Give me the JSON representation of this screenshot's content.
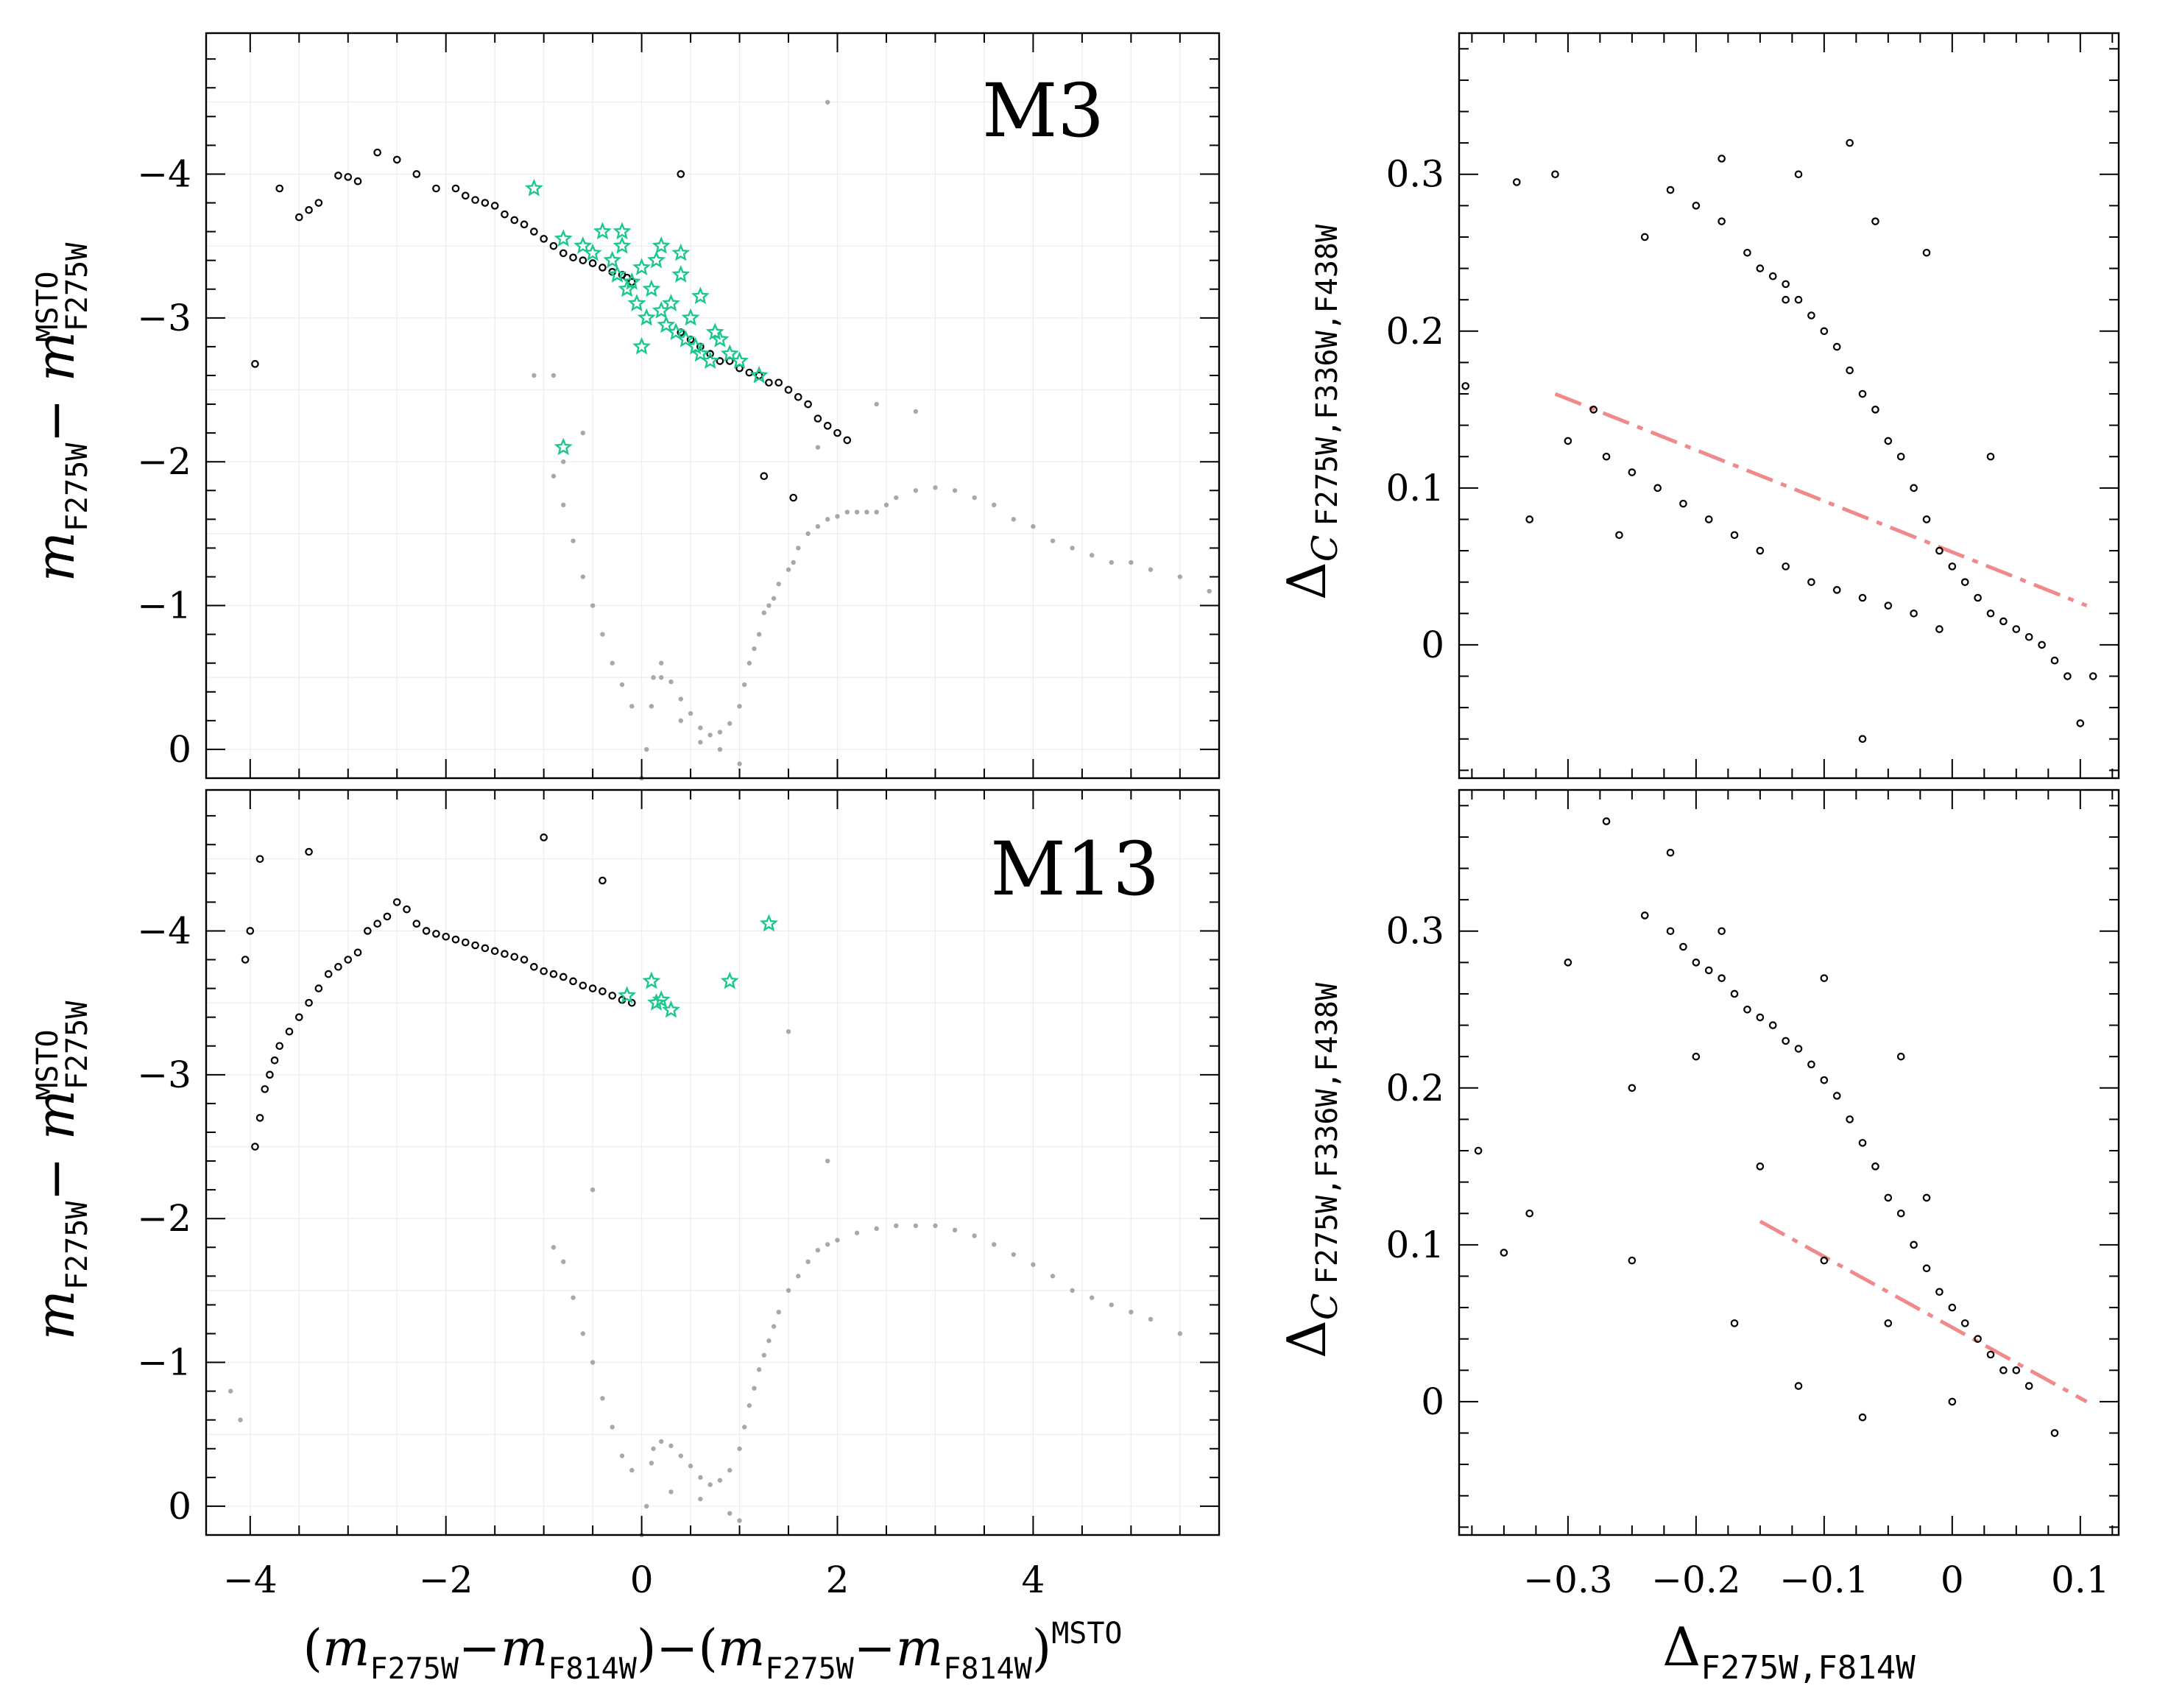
{
  "figure": {
    "colors": {
      "background_stars": "#a8a8a8",
      "sample_stars": "#000000",
      "variable_stars": "#19c98a",
      "separator_line": "#f08a8a"
    },
    "left_xlabel": {
      "text": "(m F275W−m F814W)−(m F275W−m F814W)MSTO",
      "p1": "(",
      "m1": "m",
      "s1": "F275W",
      "dash1": "−",
      "m2": "m",
      "s2": "F814W",
      "mid": ")−(",
      "m3": "m",
      "s3": "F275W",
      "dash2": "−",
      "m4": "m",
      "s4": "F814W",
      "close": ")",
      "sup": "MSTO"
    },
    "left_ylabel": {
      "text": "m F275W− m F275W MSTO",
      "m1": "m",
      "s1": "F275W",
      "dash": "− ",
      "m2": "m",
      "sub": "F275W",
      "sup": "MSTO"
    },
    "right_xlabel": {
      "text": "ΔF275W,F814W",
      "delta": "Δ",
      "sub": "F275W,F814W"
    },
    "right_ylabel": {
      "text": "ΔC F275W,F336W,F438W",
      "delta": "Δ",
      "c": "C",
      "sub": "F275W,F336W,F438W"
    }
  },
  "chart_data": [
    {
      "id": "m3-cmd",
      "type": "scatter",
      "title": "M3",
      "xlim": [
        -4.45,
        5.9
      ],
      "ylim": [
        0.2,
        -4.98
      ],
      "yreversed": true,
      "xticks": [
        -4,
        -2,
        0,
        2,
        4
      ],
      "yticks": [
        -4,
        -3,
        -2,
        -1,
        0
      ],
      "show_xticklabels": false,
      "grid": true,
      "series": [
        {
          "name": "background",
          "marker": "dot",
          "x": [
            0,
            0.05,
            0.1,
            0.12,
            0.2,
            0.3,
            0.4,
            0.5,
            0.6,
            0.7,
            0.8,
            0.9,
            1.0,
            1.05,
            1.1,
            1.15,
            1.2,
            1.25,
            1.3,
            1.35,
            1.4,
            1.5,
            1.55,
            1.6,
            1.7,
            1.8,
            1.9,
            2.0,
            2.1,
            2.2,
            2.3,
            2.4,
            2.5,
            2.6,
            2.8,
            3.0,
            3.2,
            3.4,
            3.6,
            3.8,
            4.0,
            4.2,
            4.4,
            4.6,
            4.8,
            5.0,
            5.2,
            5.5,
            5.8,
            -0.3,
            -0.4,
            -0.5,
            -0.6,
            -0.7,
            -0.8,
            -0.2,
            -0.1,
            0.2,
            0.4,
            0.6,
            0.8,
            1.0,
            -0.9,
            -0.8,
            -0.6,
            2.4,
            2.8,
            1.8,
            -0.9,
            -1.1,
            1.9
          ],
          "y": [
            0.2,
            0.0,
            -0.3,
            -0.5,
            -0.5,
            -0.47,
            -0.35,
            -0.25,
            -0.15,
            -0.1,
            -0.12,
            -0.18,
            -0.3,
            -0.45,
            -0.6,
            -0.7,
            -0.8,
            -0.95,
            -1.0,
            -1.05,
            -1.15,
            -1.25,
            -1.3,
            -1.4,
            -1.5,
            -1.55,
            -1.6,
            -1.62,
            -1.65,
            -1.65,
            -1.65,
            -1.65,
            -1.7,
            -1.75,
            -1.8,
            -1.82,
            -1.8,
            -1.75,
            -1.7,
            -1.6,
            -1.55,
            -1.45,
            -1.4,
            -1.35,
            -1.3,
            -1.3,
            -1.25,
            -1.2,
            -1.1,
            -0.6,
            -0.8,
            -1.0,
            -1.2,
            -1.45,
            -1.7,
            -0.45,
            -0.3,
            -0.6,
            -0.2,
            -0.05,
            0.0,
            0.1,
            -1.9,
            -2.0,
            -2.2,
            -2.4,
            -2.35,
            -2.1,
            -2.6,
            -2.6,
            -4.5
          ]
        },
        {
          "name": "sample",
          "marker": "circle",
          "x": [
            -3.95,
            -3.7,
            -3.5,
            -3.4,
            -3.3,
            -3.1,
            -3.0,
            -2.9,
            -2.7,
            -2.5,
            -2.3,
            -2.1,
            -1.9,
            -1.8,
            -1.7,
            -1.6,
            -1.5,
            -1.4,
            -1.3,
            -1.2,
            -1.1,
            -1.0,
            -0.9,
            -0.8,
            -0.7,
            -0.6,
            -0.5,
            -0.4,
            -0.3,
            -0.2,
            -0.15,
            -0.1,
            0.4,
            0.5,
            0.6,
            0.7,
            0.8,
            0.9,
            1.0,
            1.1,
            1.2,
            1.3,
            1.4,
            1.5,
            1.6,
            1.7,
            1.8,
            1.9,
            2.0,
            2.1,
            0.4,
            1.25,
            1.55
          ],
          "y": [
            -2.68,
            -3.9,
            -3.7,
            -3.75,
            -3.8,
            -3.99,
            -3.98,
            -3.95,
            -4.15,
            -4.1,
            -4.0,
            -3.9,
            -3.9,
            -3.85,
            -3.82,
            -3.8,
            -3.78,
            -3.72,
            -3.68,
            -3.65,
            -3.6,
            -3.55,
            -3.5,
            -3.45,
            -3.42,
            -3.4,
            -3.38,
            -3.35,
            -3.32,
            -3.3,
            -3.28,
            -3.25,
            -2.9,
            -2.85,
            -2.8,
            -2.75,
            -2.7,
            -2.7,
            -2.65,
            -2.62,
            -2.6,
            -2.55,
            -2.55,
            -2.5,
            -2.45,
            -2.4,
            -2.3,
            -2.25,
            -2.2,
            -2.15,
            -4.0,
            -1.9,
            -1.75
          ]
        },
        {
          "name": "variables",
          "marker": "star",
          "x": [
            -1.1,
            -0.8,
            -0.6,
            -0.5,
            -0.4,
            -0.3,
            -0.25,
            -0.2,
            -0.15,
            -0.1,
            -0.05,
            0,
            0.05,
            0.1,
            0.15,
            0.2,
            0.25,
            0.3,
            0.35,
            0.4,
            0.45,
            0.5,
            0.55,
            0.6,
            0.7,
            0.75,
            0.8,
            0.9,
            1.0,
            1.2,
            -0.8,
            -0.2,
            0.0,
            0.2,
            0.4,
            0.6
          ],
          "y": [
            -3.9,
            -3.55,
            -3.5,
            -3.45,
            -3.6,
            -3.4,
            -3.3,
            -3.5,
            -3.2,
            -3.25,
            -3.1,
            -3.35,
            -3.0,
            -3.2,
            -3.4,
            -3.05,
            -2.95,
            -3.1,
            -2.9,
            -3.3,
            -2.85,
            -3.0,
            -2.8,
            -3.15,
            -2.7,
            -2.9,
            -2.85,
            -2.75,
            -2.7,
            -2.6,
            -2.1,
            -3.6,
            -2.8,
            -3.5,
            -3.45,
            -2.75
          ]
        }
      ]
    },
    {
      "id": "m3-chromosome",
      "type": "scatter",
      "xlim": [
        -0.385,
        0.13
      ],
      "ylim": [
        -0.085,
        0.39
      ],
      "xticks": [
        -0.3,
        -0.2,
        -0.1,
        0,
        0.1
      ],
      "yticks": [
        0,
        0.1,
        0.2,
        0.3
      ],
      "show_xticklabels": false,
      "grid": false,
      "line": {
        "x": [
          -0.31,
          0.105
        ],
        "y": [
          0.16,
          0.025
        ]
      },
      "series": [
        {
          "name": "stars",
          "marker": "circle",
          "x": [
            -0.22,
            -0.2,
            -0.18,
            -0.16,
            -0.15,
            -0.14,
            -0.13,
            -0.12,
            -0.11,
            -0.1,
            -0.09,
            -0.08,
            -0.07,
            -0.06,
            -0.05,
            -0.04,
            -0.03,
            -0.02,
            -0.01,
            0,
            0.01,
            0.02,
            0.03,
            0.04,
            0.05,
            0.06,
            0.07,
            0.08,
            0.09,
            0.1,
            -0.3,
            -0.27,
            -0.25,
            -0.23,
            -0.21,
            -0.19,
            -0.17,
            -0.15,
            -0.13,
            -0.11,
            -0.09,
            -0.07,
            -0.05,
            -0.03,
            -0.01,
            -0.24,
            -0.18,
            -0.13,
            -0.08,
            -0.34,
            -0.31,
            -0.28,
            -0.26,
            -0.12,
            -0.06,
            -0.02,
            0.03,
            0.11,
            -0.38,
            -0.33,
            -0.07
          ],
          "y": [
            0.29,
            0.28,
            0.27,
            0.25,
            0.24,
            0.235,
            0.23,
            0.22,
            0.21,
            0.2,
            0.19,
            0.175,
            0.16,
            0.15,
            0.13,
            0.12,
            0.1,
            0.08,
            0.06,
            0.05,
            0.04,
            0.03,
            0.02,
            0.015,
            0.01,
            0.005,
            0.0,
            -0.01,
            -0.02,
            -0.05,
            0.13,
            0.12,
            0.11,
            0.1,
            0.09,
            0.08,
            0.07,
            0.06,
            0.05,
            0.04,
            0.035,
            0.03,
            0.025,
            0.02,
            0.01,
            0.26,
            0.31,
            0.22,
            0.32,
            0.295,
            0.3,
            0.15,
            0.07,
            0.3,
            0.27,
            0.25,
            0.12,
            -0.02,
            0.165,
            0.08,
            -0.06
          ]
        }
      ]
    },
    {
      "id": "m13-cmd",
      "type": "scatter",
      "title": "M13",
      "xlim": [
        -4.45,
        5.9
      ],
      "ylim": [
        0.2,
        -4.98
      ],
      "yreversed": true,
      "xticks": [
        -4,
        -2,
        0,
        2,
        4
      ],
      "yticks": [
        -4,
        -3,
        -2,
        -1,
        0
      ],
      "xlabel": "(m F275W−m F814W)−(m F275W−m F814W)MSTO",
      "show_xticklabels": true,
      "grid": true,
      "series": [
        {
          "name": "background",
          "marker": "dot",
          "x": [
            0,
            0.05,
            0.1,
            0.12,
            0.2,
            0.3,
            0.4,
            0.5,
            0.6,
            0.7,
            0.8,
            0.9,
            1.0,
            1.05,
            1.1,
            1.15,
            1.2,
            1.25,
            1.3,
            1.35,
            1.4,
            1.5,
            1.6,
            1.7,
            1.8,
            1.9,
            2.0,
            2.2,
            2.4,
            2.6,
            2.8,
            3.0,
            3.2,
            3.4,
            3.6,
            3.8,
            4.0,
            4.2,
            4.4,
            4.6,
            4.8,
            5.0,
            5.2,
            5.5,
            -0.3,
            -0.4,
            -0.5,
            -0.6,
            -0.7,
            -0.8,
            -0.2,
            -0.1,
            0.3,
            0.6,
            0.9,
            1.0,
            -4.1,
            -4.2,
            1.5,
            1.9,
            -0.5,
            -0.9
          ],
          "y": [
            0.2,
            0.0,
            -0.3,
            -0.4,
            -0.45,
            -0.42,
            -0.35,
            -0.28,
            -0.2,
            -0.15,
            -0.18,
            -0.25,
            -0.4,
            -0.55,
            -0.7,
            -0.82,
            -0.95,
            -1.05,
            -1.15,
            -1.25,
            -1.35,
            -1.5,
            -1.6,
            -1.7,
            -1.78,
            -1.82,
            -1.85,
            -1.9,
            -1.93,
            -1.95,
            -1.95,
            -1.95,
            -1.92,
            -1.88,
            -1.82,
            -1.75,
            -1.68,
            -1.6,
            -1.5,
            -1.45,
            -1.4,
            -1.35,
            -1.3,
            -1.2,
            -0.55,
            -0.75,
            -1.0,
            -1.2,
            -1.45,
            -1.7,
            -0.35,
            -0.25,
            -0.1,
            -0.05,
            0.05,
            0.1,
            -0.6,
            -0.8,
            -3.3,
            -2.4,
            -2.2,
            -1.8
          ]
        },
        {
          "name": "sample",
          "marker": "circle",
          "x": [
            -3.95,
            -3.9,
            -3.85,
            -3.8,
            -3.75,
            -3.7,
            -3.6,
            -3.5,
            -3.4,
            -3.3,
            -3.2,
            -3.1,
            -3.0,
            -2.9,
            -2.8,
            -2.7,
            -2.6,
            -2.5,
            -2.4,
            -2.3,
            -2.2,
            -2.1,
            -2.0,
            -1.9,
            -1.8,
            -1.7,
            -1.6,
            -1.5,
            -1.4,
            -1.3,
            -1.2,
            -1.1,
            -1.0,
            -0.9,
            -0.8,
            -0.7,
            -0.6,
            -0.5,
            -0.4,
            -0.3,
            -0.2,
            -0.1,
            -4.0,
            -4.05,
            -3.9,
            -3.4,
            -1.0,
            -0.4
          ],
          "y": [
            -2.5,
            -2.7,
            -2.9,
            -3.0,
            -3.1,
            -3.2,
            -3.3,
            -3.4,
            -3.5,
            -3.6,
            -3.7,
            -3.75,
            -3.8,
            -3.85,
            -4.0,
            -4.05,
            -4.1,
            -4.2,
            -4.15,
            -4.05,
            -4.0,
            -3.98,
            -3.96,
            -3.94,
            -3.92,
            -3.9,
            -3.88,
            -3.86,
            -3.84,
            -3.82,
            -3.8,
            -3.75,
            -3.72,
            -3.7,
            -3.68,
            -3.65,
            -3.62,
            -3.6,
            -3.58,
            -3.55,
            -3.52,
            -3.5,
            -4.0,
            -3.8,
            -4.5,
            -4.55,
            -4.65,
            -4.35
          ]
        },
        {
          "name": "variables",
          "marker": "star",
          "x": [
            -0.15,
            0.1,
            0.15,
            0.2,
            0.3,
            0.9,
            1.3
          ],
          "y": [
            -3.55,
            -3.65,
            -3.5,
            -3.52,
            -3.45,
            -3.65,
            -4.05
          ]
        }
      ]
    },
    {
      "id": "m13-chromosome",
      "type": "scatter",
      "xlim": [
        -0.385,
        0.13
      ],
      "ylim": [
        -0.085,
        0.39
      ],
      "xticks": [
        -0.3,
        -0.2,
        -0.1,
        0,
        0.1
      ],
      "yticks": [
        0,
        0.1,
        0.2,
        0.3
      ],
      "xlabel": "ΔF275W,F814W",
      "show_xticklabels": true,
      "grid": false,
      "line": {
        "x": [
          -0.15,
          0.105
        ],
        "y": [
          0.115,
          0.0
        ]
      },
      "series": [
        {
          "name": "stars",
          "marker": "circle",
          "x": [
            -0.24,
            -0.22,
            -0.21,
            -0.2,
            -0.19,
            -0.18,
            -0.17,
            -0.16,
            -0.15,
            -0.14,
            -0.13,
            -0.12,
            -0.11,
            -0.1,
            -0.09,
            -0.08,
            -0.07,
            -0.06,
            -0.05,
            -0.04,
            -0.03,
            -0.02,
            -0.01,
            0,
            0.01,
            0.02,
            0.03,
            0.04,
            0.06,
            0.08,
            -0.25,
            -0.2,
            -0.15,
            -0.1,
            -0.05,
            0.0,
            -0.3,
            -0.33,
            -0.35,
            -0.37,
            -0.27,
            -0.22,
            -0.17,
            -0.12,
            -0.07,
            -0.02,
            0.05,
            -0.25,
            -0.18,
            -0.1,
            -0.04
          ],
          "y": [
            0.31,
            0.3,
            0.29,
            0.28,
            0.275,
            0.27,
            0.26,
            0.25,
            0.245,
            0.24,
            0.23,
            0.225,
            0.215,
            0.205,
            0.195,
            0.18,
            0.165,
            0.15,
            0.13,
            0.12,
            0.1,
            0.085,
            0.07,
            0.06,
            0.05,
            0.04,
            0.03,
            0.02,
            0.01,
            -0.02,
            0.2,
            0.22,
            0.15,
            0.09,
            0.05,
            0.0,
            0.28,
            0.12,
            0.095,
            0.16,
            0.37,
            0.35,
            0.05,
            0.01,
            -0.01,
            0.13,
            0.02,
            0.09,
            0.3,
            0.27,
            0.22
          ]
        }
      ]
    }
  ]
}
